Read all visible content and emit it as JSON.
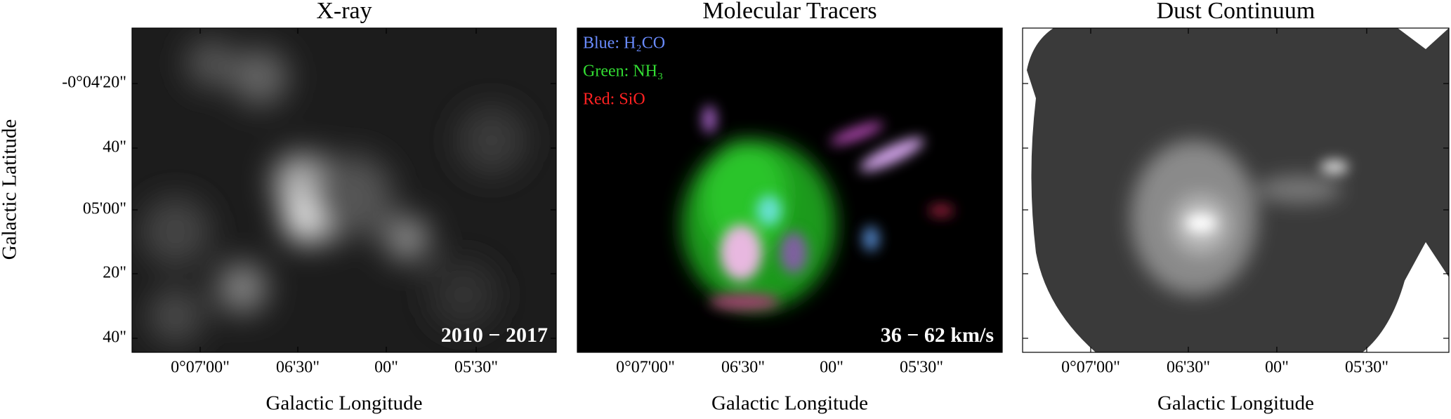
{
  "y_label": "Galactic Latitude",
  "y_ticks": [
    "-0°04'20\"",
    "40\"",
    "05'00\"",
    "20\"",
    "40\""
  ],
  "panels": [
    {
      "title": "X-ray",
      "x_ticks": [
        "0°07'00\"",
        "06'30\"",
        "00\"",
        "05'30\""
      ],
      "x_label": "Galactic Longitude",
      "annotation": "2010 − 2017"
    },
    {
      "title": "Molecular Tracers",
      "x_ticks": [
        "0°07'00\"",
        "06'30\"",
        "00\"",
        "05'30\""
      ],
      "x_label": "Galactic Longitude",
      "annotation": "36 − 62 km/s",
      "legend": [
        "Blue: H₂CO",
        "Green: NH₃",
        "Red: SiO"
      ]
    },
    {
      "title": "Dust Continuum",
      "x_ticks": [
        "0°07'00\"",
        "06'30\"",
        "00\"",
        "05'30\""
      ],
      "x_label": "Galactic Longitude"
    }
  ]
}
